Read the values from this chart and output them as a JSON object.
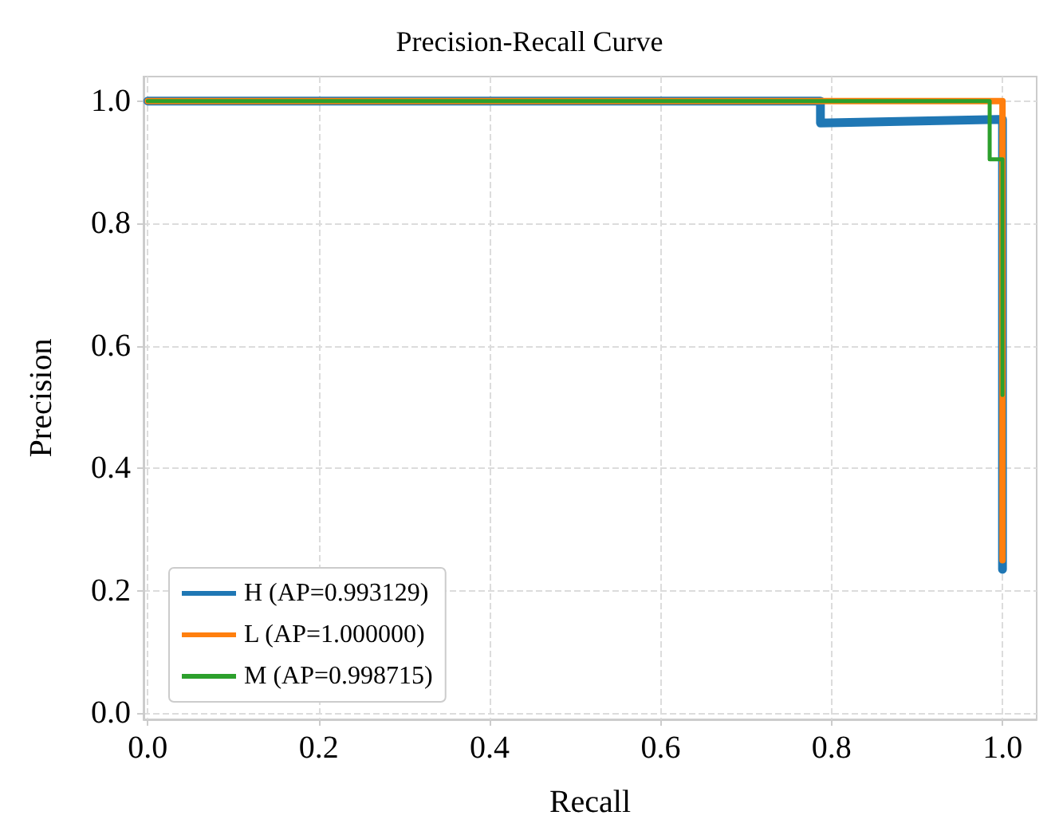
{
  "chart_data": {
    "type": "line",
    "title": "Precision-Recall Curve",
    "xlabel": "Recall",
    "ylabel": "Precision",
    "series": [
      {
        "name": "H (AP=0.993129)",
        "color": "#1f77b4",
        "x": [
          0,
          0.787,
          0.787,
          0.995,
          1.0,
          1.0
        ],
        "values": [
          1.0,
          1.0,
          0.964,
          0.97,
          0.97,
          0.235
        ]
      },
      {
        "name": "L (AP=1.000000)",
        "color": "#ff7f0e",
        "x": [
          0,
          1.0,
          1.0
        ],
        "values": [
          1.0,
          1.0,
          0.25
        ]
      },
      {
        "name": "M (AP=0.998715)",
        "color": "#2ca02c",
        "x": [
          0,
          0.985,
          0.985,
          1.0,
          1.0
        ],
        "values": [
          1.0,
          1.0,
          0.905,
          0.905,
          0.52
        ]
      }
    ],
    "xlim": [
      -0.005,
      1.04
    ],
    "ylim": [
      -0.01,
      1.04
    ],
    "xticks": [
      {
        "value": 0,
        "label": "0.0"
      },
      0.2,
      0.4,
      0.6,
      0.8,
      {
        "value": 1,
        "label": "1.0"
      }
    ],
    "yticks": [
      {
        "value": 0,
        "label": "0.0"
      },
      0.2,
      0.4,
      0.6,
      0.8,
      {
        "value": 1,
        "label": "1.0"
      }
    ],
    "grid": true,
    "legend": "bottom left",
    "marker": "none",
    "line_style": "solid"
  }
}
